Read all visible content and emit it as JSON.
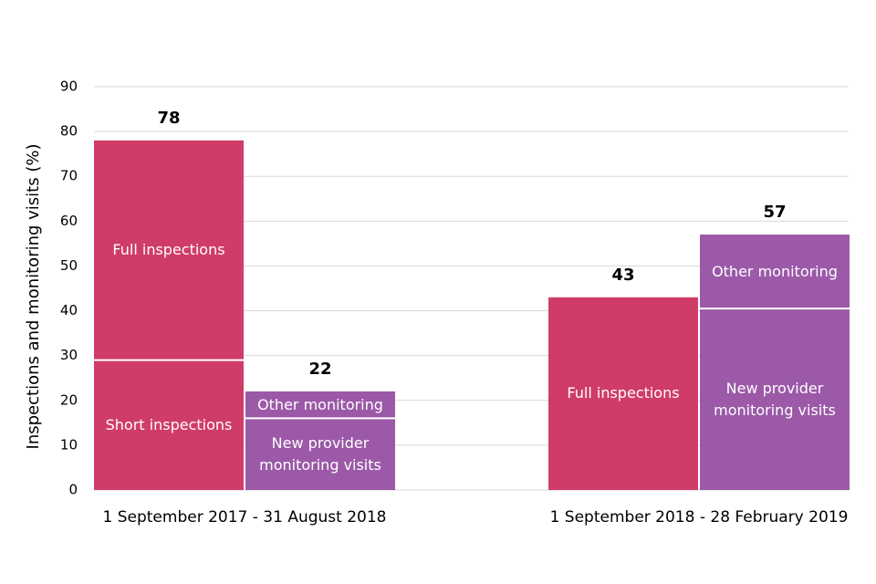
{
  "chart_data": {
    "type": "stacked_bar",
    "y_label": "Inspections and monitoring visits (%)",
    "ylim": [
      0,
      90
    ],
    "yticks": [
      0,
      10,
      20,
      30,
      40,
      50,
      60,
      70,
      80,
      90
    ],
    "grid": true,
    "groups": [
      {
        "label": "1 September 2017 - 31 August 2018",
        "bars": [
          {
            "color": "#d03c68",
            "total": 78,
            "segments": [
              {
                "name": "Short inspections",
                "value": 29
              },
              {
                "name": "Full inspections",
                "value": 49
              }
            ]
          },
          {
            "color": "#9b59a8",
            "total": 22,
            "segments": [
              {
                "name": "New provider\nmonitoring visits",
                "value": 16
              },
              {
                "name": "Other monitoring",
                "value": 6
              }
            ]
          }
        ]
      },
      {
        "label": "1 September 2018 - 28 February 2019",
        "bars": [
          {
            "color": "#d03c68",
            "total": 43,
            "segments": [
              {
                "name": "Full inspections",
                "value": 43
              }
            ]
          },
          {
            "color": "#9b59a8",
            "total": 57,
            "segments": [
              {
                "name": "New provider\nmonitoring visits",
                "value": 40.5
              },
              {
                "name": "Other monitoring",
                "value": 16.5
              }
            ]
          }
        ]
      }
    ]
  }
}
